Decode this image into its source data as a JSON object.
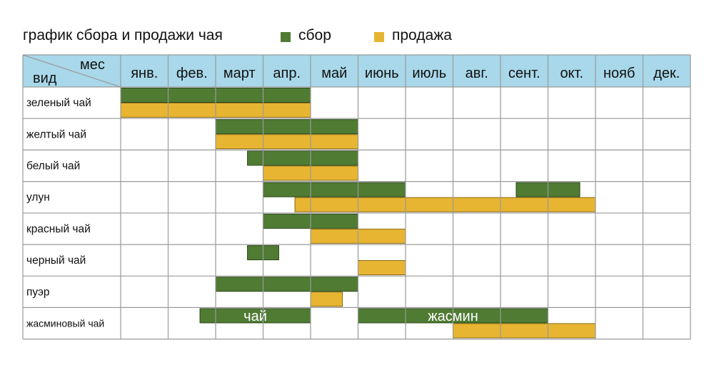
{
  "chart_data": {
    "type": "gantt",
    "title": "график сбора и продажи чая",
    "legend": [
      {
        "name": "сбор",
        "color": "#4f7b33"
      },
      {
        "name": "продажа",
        "color": "#e7b531"
      }
    ],
    "header_corner": {
      "col_label": "мес",
      "row_label": "вид"
    },
    "months": [
      "янв.",
      "фев.",
      "март",
      "апр.",
      "май",
      "июнь",
      "июль",
      "авг.",
      "сент.",
      "окт.",
      "нояб",
      "дек."
    ],
    "rows": [
      {
        "name": "зеленый чай",
        "harvest": [
          {
            "start": 0,
            "end": 4
          }
        ],
        "sale": [
          {
            "start": 0,
            "end": 4
          }
        ]
      },
      {
        "name": "желтый чай",
        "harvest": [
          {
            "start": 2,
            "end": 5
          }
        ],
        "sale": [
          {
            "start": 2,
            "end": 5
          }
        ]
      },
      {
        "name": "белый чай",
        "harvest": [
          {
            "start": 2.67,
            "end": 5
          }
        ],
        "sale": [
          {
            "start": 3,
            "end": 5
          }
        ]
      },
      {
        "name": "улун",
        "harvest": [
          {
            "start": 3,
            "end": 6
          },
          {
            "start": 8.33,
            "end": 9.67
          }
        ],
        "sale": [
          {
            "start": 3.67,
            "end": 10
          }
        ]
      },
      {
        "name": "красный чай",
        "harvest": [
          {
            "start": 3,
            "end": 5
          }
        ],
        "sale": [
          {
            "start": 4,
            "end": 6
          }
        ]
      },
      {
        "name": "черный чай",
        "harvest": [
          {
            "start": 2.67,
            "end": 3.33
          }
        ],
        "sale": [
          {
            "start": 5,
            "end": 6
          }
        ]
      },
      {
        "name": "пуэр",
        "harvest": [
          {
            "start": 2,
            "end": 5
          }
        ],
        "sale": [
          {
            "start": 4,
            "end": 4.67
          }
        ]
      },
      {
        "name": "жасминовый чай",
        "harvest": [
          {
            "start": 1.67,
            "end": 4,
            "label": "чай"
          },
          {
            "start": 5,
            "end": 9,
            "label": "жасмин"
          }
        ],
        "sale": [
          {
            "start": 7,
            "end": 10
          }
        ]
      }
    ],
    "colors": {
      "header_bg": "#a8d8ea",
      "grid": "#9a9a9a",
      "harvest": "#4f7b33",
      "sale": "#e7b531"
    }
  }
}
